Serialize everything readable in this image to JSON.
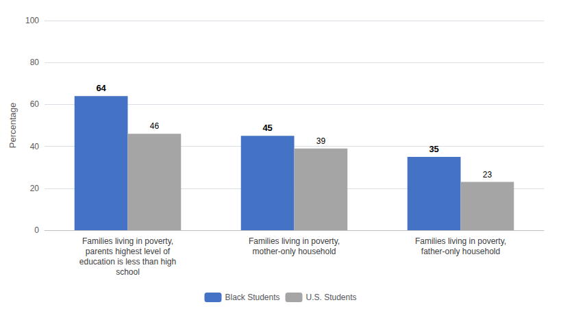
{
  "chart_data": {
    "type": "bar",
    "categories": [
      "Families living in poverty,\nparents highest level of\neducation is less than high\nschool",
      "Families living in poverty,\nmother-only household",
      "Families living in poverty,\nfather-only household"
    ],
    "series": [
      {
        "name": "Black Students",
        "color": "#4472C4",
        "values": [
          64,
          45,
          35
        ]
      },
      {
        "name": "U.S. Students",
        "color": "#A5A5A5",
        "values": [
          46,
          39,
          23
        ]
      }
    ],
    "ylabel": "Percentage",
    "ylim": [
      0,
      100
    ],
    "yticks": [
      0,
      20,
      40,
      60,
      80,
      100
    ],
    "grid": true,
    "legend": "bottom",
    "data_labels": true
  }
}
